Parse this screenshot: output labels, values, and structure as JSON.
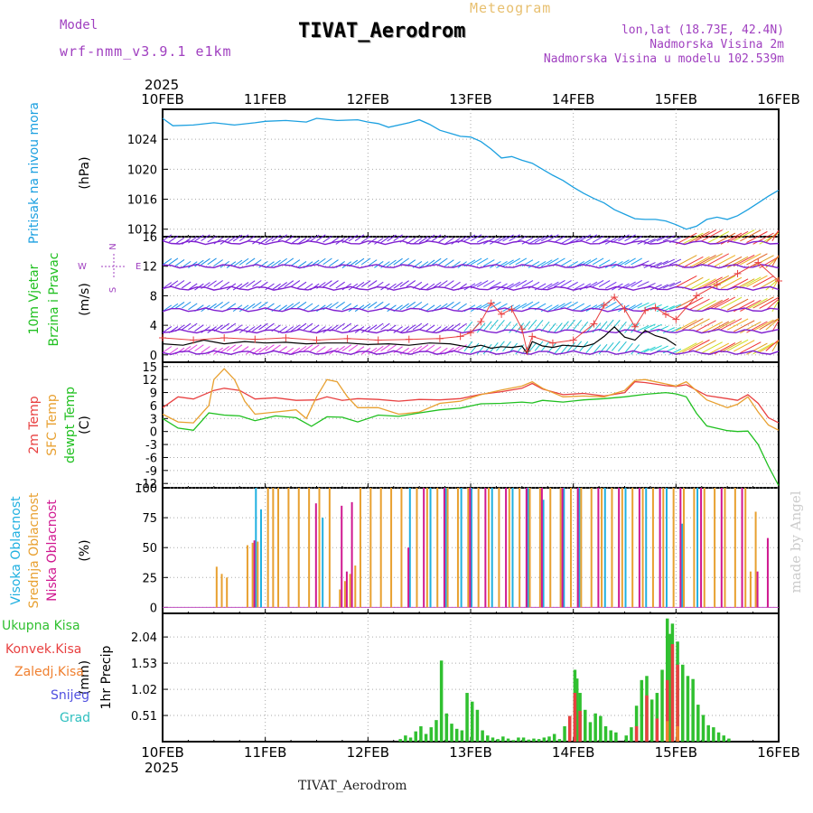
{
  "header": {
    "meteogram": "Meteogram",
    "station": "TIVAT_Aerodrom",
    "model_label": "Model",
    "model": "wrf-nmm_v3.9.1 e1km",
    "lonlat": "lon,lat (18.73E, 42.4N)",
    "altitude": "Nadmorska Visina 2m",
    "model_altitude": "Nadmorska Visina u modelu 102.539m",
    "footer_station": "TIVAT_Aerodrom",
    "watermark": "made by Angel"
  },
  "colors": {
    "pressure": "#1ca0e0",
    "temp2m": "#e84040",
    "sfctemp": "#e8a030",
    "dewpt": "#20c020",
    "high_cloud": "#20b0e0",
    "mid_cloud": "#e8a030",
    "low_cloud": "#d01890",
    "total_precip": "#30c030",
    "conv_precip": "#e84040",
    "frozen": "#f08030",
    "snow": "#5050e0",
    "hail": "#30c0c0",
    "wind_label": "#20c020",
    "wind_speed": "#000000",
    "wind_gust": "#e84040"
  },
  "chart_data": [
    {
      "type": "line",
      "panel": "pressure",
      "x_dates": [
        "10FEB",
        "11FEB",
        "12FEB",
        "13FEB",
        "14FEB",
        "15FEB",
        "16FEB"
      ],
      "year": "2025",
      "ylabel": "Pritisak na nivou mora",
      "units": "(hPa)",
      "yticks": [
        1012,
        1016,
        1020,
        1024
      ],
      "ylim": [
        1011,
        1028
      ],
      "series": [
        {
          "x": [
            0,
            0.1,
            0.3,
            0.5,
            0.7,
            0.9,
            1.0,
            1.2,
            1.4,
            1.5,
            1.7,
            1.9,
            2.0,
            2.1,
            2.2,
            2.4,
            2.5,
            2.6,
            2.7,
            2.8,
            2.9,
            3.0,
            3.1,
            3.2,
            3.3,
            3.4,
            3.5,
            3.6,
            3.7,
            3.8,
            3.9,
            4.0,
            4.1,
            4.2,
            4.3,
            4.4,
            4.5,
            4.6,
            4.7,
            4.8,
            4.9,
            5.0,
            5.1,
            5.2,
            5.3,
            5.4,
            5.5,
            5.6,
            5.7,
            5.8,
            5.9,
            6.0
          ],
          "values": [
            1026.8,
            1025.8,
            1025.9,
            1026.2,
            1025.9,
            1026.2,
            1026.4,
            1026.5,
            1026.3,
            1026.8,
            1026.5,
            1026.6,
            1026.3,
            1026.1,
            1025.6,
            1026.2,
            1026.6,
            1026.0,
            1025.2,
            1024.8,
            1024.4,
            1024.3,
            1023.7,
            1022.7,
            1021.5,
            1021.7,
            1021.2,
            1020.8,
            1020.0,
            1019.2,
            1018.5,
            1017.6,
            1016.8,
            1016.1,
            1015.5,
            1014.6,
            1014.0,
            1013.4,
            1013.3,
            1013.3,
            1013.1,
            1012.6,
            1012.0,
            1012.4,
            1013.3,
            1013.6,
            1013.3,
            1013.8,
            1014.6,
            1015.5,
            1016.4,
            1017.2
          ]
        }
      ]
    },
    {
      "type": "line",
      "panel": "wind",
      "ylabel": "10m Vjetar",
      "ylabel2": "Brzina i Pravac",
      "units": "(m/s)",
      "compass": [
        "N",
        "W",
        "E",
        "S"
      ],
      "yticks": [
        0,
        4,
        8,
        12,
        16
      ],
      "ylim": [
        -1,
        16
      ],
      "series": [
        {
          "name": "speed",
          "x": [
            0,
            0.2,
            0.4,
            0.6,
            0.8,
            1.0,
            1.2,
            1.4,
            1.6,
            1.8,
            2.0,
            2.2,
            2.4,
            2.6,
            2.8,
            3.0,
            3.1,
            3.2,
            3.3,
            3.4,
            3.5,
            3.55,
            3.6,
            3.7,
            3.8,
            3.9,
            4.0,
            4.1,
            4.2,
            4.3,
            4.4,
            4.5,
            4.6,
            4.7,
            4.8,
            4.9,
            5.0
          ],
          "values": [
            1.5,
            1.3,
            2.0,
            1.5,
            1.8,
            1.6,
            1.7,
            1.5,
            1.6,
            1.6,
            1.4,
            1.5,
            1.3,
            1.6,
            1.5,
            1.0,
            1.3,
            0.9,
            1.1,
            1.0,
            1.2,
            0.2,
            1.8,
            1.2,
            1.0,
            1.3,
            1.2,
            1.1,
            1.5,
            2.5,
            3.8,
            2.4,
            2.0,
            3.3,
            2.6,
            2.2,
            1.3
          ]
        },
        {
          "name": "gust",
          "x": [
            0,
            0.3,
            0.6,
            0.9,
            1.2,
            1.5,
            1.8,
            2.1,
            2.4,
            2.7,
            2.9,
            3.0,
            3.1,
            3.2,
            3.3,
            3.4,
            3.5,
            3.55,
            3.6,
            3.8,
            4.0,
            4.2,
            4.3,
            4.4,
            4.5,
            4.6,
            4.7,
            4.8,
            4.9,
            5.0,
            5.2,
            5.4,
            5.6,
            5.8,
            6.0
          ],
          "values": [
            2.3,
            2.0,
            2.3,
            2.1,
            2.3,
            2.0,
            2.2,
            2.0,
            2.1,
            2.2,
            2.5,
            3.0,
            4.5,
            7.0,
            5.5,
            6.2,
            3.5,
            0.5,
            2.5,
            1.6,
            2.0,
            4.2,
            6.7,
            7.8,
            6.2,
            3.8,
            6.0,
            6.4,
            5.5,
            4.8,
            8.0,
            9.5,
            11.0,
            12.5,
            10.0
          ]
        }
      ]
    },
    {
      "type": "line",
      "panel": "temperature",
      "ylabel": "2m Temp",
      "ylabel2": "SFC Temp",
      "ylabel3": "dewpt Temp",
      "units": "(C)",
      "yticks": [
        -12,
        -9,
        -6,
        -3,
        0,
        3,
        6,
        9,
        12,
        15
      ],
      "ylim": [
        -13,
        16
      ],
      "series": [
        {
          "name": "2m Temp",
          "x": [
            0,
            0.15,
            0.3,
            0.5,
            0.6,
            0.75,
            0.9,
            1.1,
            1.3,
            1.5,
            1.6,
            1.75,
            1.9,
            2.1,
            2.3,
            2.5,
            2.7,
            2.9,
            3.1,
            3.3,
            3.5,
            3.6,
            3.7,
            3.9,
            4.1,
            4.3,
            4.5,
            4.6,
            4.7,
            4.9,
            5.0,
            5.1,
            5.3,
            5.5,
            5.6,
            5.7,
            5.8,
            5.9,
            6.0
          ],
          "values": [
            5.5,
            8.0,
            7.5,
            9.5,
            10.0,
            9.5,
            7.5,
            7.8,
            7.2,
            7.3,
            8.0,
            7.2,
            7.6,
            7.4,
            7.0,
            7.4,
            7.3,
            7.6,
            8.6,
            9.2,
            10.0,
            11.1,
            9.8,
            8.5,
            8.8,
            8.2,
            9.0,
            11.5,
            11.3,
            10.6,
            10.4,
            10.8,
            8.3,
            7.6,
            7.2,
            8.5,
            6.5,
            3.2,
            2.0
          ]
        },
        {
          "name": "SFC Temp",
          "x": [
            0,
            0.15,
            0.3,
            0.45,
            0.5,
            0.6,
            0.7,
            0.8,
            0.9,
            1.1,
            1.3,
            1.4,
            1.5,
            1.6,
            1.7,
            1.8,
            1.9,
            2.1,
            2.3,
            2.5,
            2.7,
            2.9,
            3.1,
            3.3,
            3.5,
            3.6,
            3.7,
            3.9,
            4.1,
            4.3,
            4.5,
            4.6,
            4.7,
            4.9,
            5.0,
            5.1,
            5.3,
            5.5,
            5.6,
            5.7,
            5.8,
            5.9,
            6.0
          ],
          "values": [
            4.0,
            2.2,
            2.0,
            6.0,
            12.0,
            14.5,
            12.0,
            7.0,
            4.0,
            4.5,
            5.0,
            3.0,
            8.0,
            12.0,
            11.5,
            8.0,
            5.5,
            5.5,
            4.0,
            4.5,
            6.5,
            7.0,
            8.5,
            9.6,
            10.5,
            11.5,
            10.0,
            8.0,
            8.2,
            8.0,
            9.5,
            11.8,
            12.0,
            11.0,
            10.5,
            11.5,
            7.3,
            5.5,
            6.3,
            8.0,
            4.5,
            1.5,
            0.3
          ]
        },
        {
          "name": "dewpt Temp",
          "x": [
            0,
            0.15,
            0.3,
            0.45,
            0.6,
            0.75,
            0.9,
            1.1,
            1.3,
            1.45,
            1.6,
            1.75,
            1.9,
            2.1,
            2.3,
            2.5,
            2.7,
            2.9,
            3.1,
            3.3,
            3.5,
            3.6,
            3.7,
            3.9,
            4.1,
            4.3,
            4.5,
            4.7,
            4.9,
            5.0,
            5.1,
            5.2,
            5.3,
            5.5,
            5.6,
            5.7,
            5.8,
            5.9,
            6.0
          ],
          "values": [
            3.0,
            0.8,
            0.3,
            4.3,
            3.8,
            3.6,
            2.5,
            3.6,
            3.2,
            1.2,
            3.4,
            3.3,
            2.2,
            3.8,
            3.5,
            4.3,
            5.0,
            5.4,
            6.4,
            6.5,
            6.8,
            6.6,
            7.2,
            6.8,
            7.3,
            7.6,
            8.0,
            8.6,
            9.0,
            8.7,
            8.0,
            4.2,
            1.3,
            0.2,
            0.0,
            0.1,
            -3.0,
            -8.0,
            -12.5
          ]
        }
      ]
    },
    {
      "type": "bar",
      "panel": "clouds",
      "ylabel": "Visoka Oblacnost",
      "ylabel2": "Srednja Oblacnost",
      "ylabel3": "Niska Oblacnost",
      "units": "(%)",
      "yticks": [
        0,
        25,
        50,
        75,
        100
      ],
      "ylim": [
        -5,
        100
      ],
      "series": [
        {
          "name": "Visoka Oblacnost",
          "x": [
            0.9,
            0.95,
            1.55,
            2.4,
            2.6,
            2.75,
            2.9,
            3.0,
            3.2,
            3.4,
            3.55,
            3.7,
            3.9,
            4.05,
            4.3,
            4.5,
            4.7,
            4.9,
            5.05,
            5.2
          ],
          "values": [
            100,
            82,
            75,
            100,
            100,
            100,
            100,
            100,
            100,
            100,
            100,
            90,
            100,
            100,
            100,
            100,
            100,
            100,
            70,
            100
          ]
        },
        {
          "name": "Srednja Oblacnost",
          "x": [
            0.5,
            0.55,
            0.6,
            0.8,
            0.85,
            0.9,
            1.0,
            1.05,
            1.1,
            1.2,
            1.3,
            1.4,
            1.5,
            1.6,
            1.7,
            1.75,
            1.8,
            1.85,
            1.9,
            2.0,
            2.1,
            2.2,
            2.3,
            2.45,
            2.55,
            2.65,
            2.75,
            2.85,
            2.95,
            3.05,
            3.15,
            3.25,
            3.35,
            3.45,
            3.55,
            3.65,
            3.75,
            3.85,
            3.95,
            4.05,
            4.15,
            4.25,
            4.35,
            4.45,
            4.55,
            4.65,
            4.75,
            4.85,
            4.95,
            5.05,
            5.15,
            5.25,
            5.35,
            5.45,
            5.55,
            5.65,
            5.7,
            5.75
          ],
          "values": [
            34,
            28,
            25,
            52,
            54,
            55,
            100,
            100,
            100,
            100,
            100,
            100,
            100,
            100,
            15,
            22,
            28,
            35,
            100,
            100,
            100,
            100,
            100,
            100,
            100,
            100,
            100,
            100,
            100,
            100,
            100,
            100,
            100,
            100,
            100,
            100,
            100,
            100,
            100,
            100,
            100,
            100,
            100,
            100,
            100,
            100,
            100,
            100,
            100,
            100,
            100,
            100,
            100,
            100,
            100,
            100,
            30,
            80
          ]
        },
        {
          "name": "Niska Oblacnost",
          "x": [
            0.85,
            1.45,
            1.7,
            1.75,
            1.8,
            2.35,
            2.5,
            2.7,
            2.95,
            3.1,
            3.3,
            3.5,
            3.65,
            3.85,
            4.0,
            4.2,
            4.4,
            4.6,
            4.8,
            5.0,
            5.2,
            5.4,
            5.6,
            5.75,
            5.85
          ],
          "values": [
            56,
            87,
            85,
            30,
            88,
            50,
            100,
            100,
            100,
            100,
            100,
            100,
            100,
            100,
            100,
            100,
            100,
            100,
            100,
            100,
            100,
            100,
            100,
            30,
            58
          ]
        }
      ]
    },
    {
      "type": "bar",
      "panel": "precipitation",
      "ylabel": "1hr Precip",
      "units": "(mm)",
      "legend": [
        "Ukupna Kisa",
        "Konvek.Kisa",
        "Zaledj.Kisa",
        "Snijeg",
        "Grad"
      ],
      "yticks": [
        0.51,
        1.02,
        1.53,
        2.04
      ],
      "ylim": [
        0,
        2.5
      ],
      "series": [
        {
          "name": "Ukupna Kisa",
          "x": [
            2.3,
            2.35,
            2.4,
            2.45,
            2.5,
            2.55,
            2.6,
            2.65,
            2.7,
            2.75,
            2.8,
            2.85,
            2.9,
            2.95,
            3.0,
            3.05,
            3.1,
            3.15,
            3.2,
            3.25,
            3.3,
            3.35,
            3.4,
            3.45,
            3.5,
            3.55,
            3.6,
            3.65,
            3.7,
            3.75,
            3.8,
            3.85,
            3.9,
            3.95,
            4.0,
            4.02,
            4.05,
            4.1,
            4.15,
            4.2,
            4.25,
            4.3,
            4.35,
            4.4,
            4.5,
            4.55,
            4.6,
            4.65,
            4.7,
            4.75,
            4.8,
            4.85,
            4.9,
            4.93,
            4.95,
            5.0,
            5.05,
            5.1,
            5.15,
            5.2,
            5.25,
            5.3,
            5.35,
            5.4,
            5.45,
            5.5
          ],
          "values": [
            0.05,
            0.12,
            0.08,
            0.2,
            0.3,
            0.15,
            0.28,
            0.42,
            1.58,
            0.55,
            0.35,
            0.25,
            0.22,
            0.95,
            0.78,
            0.62,
            0.22,
            0.12,
            0.08,
            0.05,
            0.1,
            0.06,
            0.03,
            0.08,
            0.08,
            0.04,
            0.06,
            0.05,
            0.08,
            0.1,
            0.15,
            0.05,
            0.3,
            0.5,
            1.4,
            1.23,
            0.95,
            0.62,
            0.38,
            0.55,
            0.5,
            0.3,
            0.22,
            0.18,
            0.12,
            0.28,
            0.7,
            1.2,
            1.28,
            0.82,
            0.95,
            1.4,
            2.4,
            2.1,
            2.3,
            1.95,
            1.5,
            1.28,
            1.22,
            0.72,
            0.52,
            0.32,
            0.28,
            0.18,
            0.12,
            0.06
          ]
        },
        {
          "name": "Konvek.Kisa",
          "x": [
            3.95,
            4.0,
            4.05,
            4.6,
            4.7,
            4.8,
            4.9,
            4.95,
            5.0
          ],
          "values": [
            0.5,
            0.95,
            0.6,
            0.3,
            0.9,
            0.45,
            1.2,
            1.9,
            1.5
          ]
        },
        {
          "name": "Zaledj.Kisa",
          "x": [
            4.9,
            5.0
          ],
          "values": [
            0.4,
            0.3
          ]
        },
        {
          "name": "Snijeg",
          "x": [],
          "values": []
        },
        {
          "name": "Grad",
          "x": [],
          "values": []
        }
      ]
    }
  ]
}
